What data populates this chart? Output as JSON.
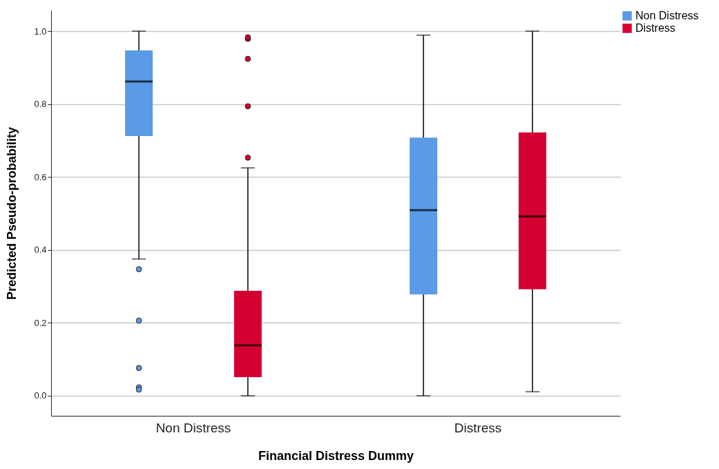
{
  "chart_data": {
    "type": "box",
    "xlabel": "Financial Distress Dummy",
    "ylabel": "Predicted Pseudo-probability",
    "categories": [
      "Non Distress",
      "Distress"
    ],
    "series": [
      {
        "name": "Non Distress",
        "color": "#5a9ae6",
        "boxes": [
          {
            "low": 0.375,
            "q1": 0.712,
            "median": 0.862,
            "q3": 0.947,
            "high": 1.0,
            "outliers": [
              0.347,
              0.206,
              0.076,
              0.023,
              0.017
            ]
          },
          {
            "low": 0.0,
            "q1": 0.278,
            "median": 0.509,
            "q3": 0.708,
            "high": 0.989
          }
        ]
      },
      {
        "name": "Distress",
        "color": "#d50032",
        "boxes": [
          {
            "low": 0.0,
            "q1": 0.051,
            "median": 0.138,
            "q3": 0.288,
            "high": 0.625,
            "outliers": [
              0.653,
              0.794,
              0.924,
              0.979,
              0.983
            ]
          },
          {
            "low": 0.011,
            "q1": 0.292,
            "median": 0.492,
            "q3": 0.722,
            "high": 1.0
          }
        ]
      }
    ],
    "ylim": [
      -0.055,
      1.057
    ],
    "yticks": [
      {
        "value": 0,
        "label": "0.0"
      },
      0.2,
      0.4,
      0.6,
      0.8,
      {
        "value": 1,
        "label": "1.0"
      }
    ],
    "grid": "y",
    "legend": "top right"
  }
}
